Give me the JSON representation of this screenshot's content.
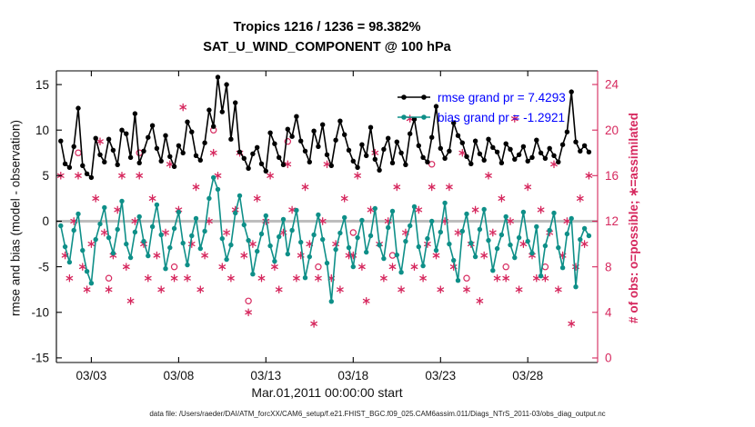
{
  "legend": {
    "text_color": "#0000ff",
    "items": [
      {
        "name": "rmse",
        "label": "rmse grand pr = 7.4293",
        "color": "#000000"
      },
      {
        "name": "bias",
        "label": "bias grand pr = -1.2921",
        "color": "#0e8f88"
      }
    ]
  },
  "footer": {
    "data_file": "data file: /Users/raeder/DAI/ATM_forcXX/CAM6_setup/f.e21.FHIST_BGC.f09_025.CAM6assim.011/Diags_NTrS_2011-03/obs_diag_output.nc"
  },
  "chart_data": {
    "type": "line",
    "title": "Tropics 1216 / 1236 = 98.382%",
    "subtitle": "SAT_U_WIND_COMPONENT @ 100 hPa",
    "xlabel": "Mar.01,2011 00:00:00 start",
    "ylabel_left": "rmse and bias (model - observation)",
    "ylabel_right": "# of obs: o=possible; ∗=assimilated",
    "right_axis_color": "#d6285e",
    "zero_line": {
      "color": "#bdbdbd",
      "width": 3
    },
    "xlim": [
      1,
      32
    ],
    "x_start_day": 1.25,
    "x_step_days": 0.25,
    "xticks": [
      3,
      8,
      13,
      18,
      23,
      28
    ],
    "xtick_labels": [
      "03/03",
      "03/08",
      "03/13",
      "03/18",
      "03/23",
      "03/28"
    ],
    "ylim_left": [
      -15,
      15
    ],
    "yticks_left": [
      -15,
      -10,
      -5,
      0,
      5,
      10,
      15
    ],
    "ylim_right": [
      0,
      24
    ],
    "yticks_right": [
      0,
      4,
      8,
      12,
      16,
      20,
      24
    ],
    "grand_means": {
      "rmse": 7.4293,
      "bias": -1.2921
    },
    "obs_summary": {
      "region": "Tropics",
      "assimilated": 1216,
      "possible": 1236,
      "percent": 98.382
    },
    "series": [
      {
        "name": "rmse",
        "axis": "left",
        "color": "#000000",
        "marker": "filled-circle",
        "values": [
          8.8,
          6.3,
          5.9,
          8.2,
          12.4,
          6.1,
          5.2,
          4.8,
          9.1,
          7.3,
          6.5,
          9.0,
          7.8,
          6.2,
          10.0,
          9.6,
          7.0,
          11.8,
          6.4,
          7.7,
          9.2,
          10.5,
          8.0,
          6.6,
          9.4,
          7.1,
          6.0,
          8.3,
          7.5,
          10.9,
          9.8,
          7.2,
          6.7,
          8.6,
          12.2,
          10.4,
          15.8,
          12.0,
          15.0,
          9.0,
          13.0,
          7.6,
          6.9,
          5.8,
          7.4,
          8.1,
          6.3,
          5.5,
          9.7,
          8.5,
          7.0,
          6.2,
          10.1,
          9.3,
          11.5,
          8.8,
          7.7,
          6.5,
          9.9,
          8.2,
          10.6,
          7.3,
          6.1,
          8.9,
          11.0,
          9.5,
          7.8,
          6.6,
          5.9,
          8.4,
          7.2,
          10.3,
          6.8,
          5.6,
          7.9,
          9.1,
          6.4,
          8.7,
          7.5,
          6.2,
          9.6,
          11.2,
          8.3,
          7.0,
          6.5,
          9.2,
          12.6,
          8.0,
          6.9,
          7.7,
          10.8,
          9.4,
          8.6,
          7.1,
          6.3,
          8.8,
          7.4,
          6.7,
          9.0,
          8.1,
          7.6,
          6.4,
          8.5,
          7.9,
          6.8,
          7.3,
          8.2,
          6.6,
          7.0,
          8.9,
          7.5,
          6.9,
          8.0,
          7.2,
          6.5,
          8.4,
          9.8,
          14.2,
          8.7,
          7.7,
          8.3,
          7.6
        ]
      },
      {
        "name": "bias",
        "axis": "left",
        "color": "#0e8f88",
        "marker": "filled-circle",
        "values": [
          -0.5,
          -2.8,
          -4.5,
          -1.0,
          0.8,
          -3.2,
          -5.5,
          -6.8,
          -2.0,
          -0.3,
          1.5,
          -1.8,
          -3.5,
          -0.9,
          2.2,
          -2.5,
          -4.0,
          -1.2,
          0.5,
          -2.2,
          -3.8,
          -0.6,
          1.8,
          -1.5,
          -5.2,
          -2.9,
          -0.8,
          1.0,
          -2.4,
          -4.8,
          -1.6,
          0.3,
          -3.0,
          -1.1,
          2.5,
          4.8,
          3.5,
          -1.9,
          -4.2,
          -2.6,
          0.9,
          2.8,
          -0.4,
          -2.1,
          -5.8,
          -3.3,
          -1.4,
          0.6,
          -2.7,
          -4.4,
          -1.7,
          0.2,
          -3.6,
          -1.0,
          1.2,
          -2.3,
          -6.2,
          -3.9,
          -1.5,
          0.7,
          -2.0,
          -4.6,
          -8.8,
          -3.1,
          -1.3,
          0.4,
          -2.9,
          -5.0,
          -1.8,
          0.1,
          -3.4,
          -1.6,
          1.4,
          -2.6,
          -4.1,
          -0.7,
          1.1,
          -3.7,
          -5.6,
          -2.2,
          -0.5,
          1.6,
          -2.8,
          -4.9,
          -1.9,
          0.0,
          -3.2,
          -1.2,
          2.0,
          -2.5,
          -4.3,
          -6.5,
          -1.1,
          0.8,
          -2.4,
          -3.9,
          -0.9,
          1.3,
          -2.1,
          -5.4,
          -3.0,
          -1.5,
          0.5,
          -2.6,
          -4.0,
          -1.8,
          1.0,
          -2.2,
          -3.5,
          -0.6,
          -6.0,
          -2.7,
          -1.0,
          0.9,
          -2.9,
          -5.1,
          -1.4,
          0.3,
          -7.2,
          -2.0,
          -0.8,
          -1.6
        ]
      },
      {
        "name": "possible",
        "axis": "right",
        "color": "#d6285e",
        "marker": "open-circle",
        "values": [
          16,
          9,
          7,
          12,
          18,
          8,
          6,
          10,
          14,
          19,
          11,
          7,
          9,
          13,
          16,
          8,
          5,
          12,
          18,
          10,
          7,
          14,
          9,
          6,
          11,
          17,
          8,
          13,
          22,
          7,
          10,
          15,
          6,
          9,
          12,
          20,
          16,
          8,
          11,
          7,
          13,
          18,
          9,
          5,
          10,
          14,
          7,
          12,
          16,
          8,
          6,
          11,
          19,
          13,
          7,
          9,
          15,
          10,
          3,
          8,
          12,
          17,
          7,
          10,
          6,
          14,
          9,
          11,
          16,
          8,
          5,
          13,
          18,
          10,
          7,
          12,
          9,
          15,
          6,
          11,
          21,
          8,
          13,
          7,
          10,
          17,
          9,
          6,
          12,
          15,
          8,
          11,
          18,
          7,
          10,
          13,
          5,
          9,
          16,
          11,
          7,
          14,
          8,
          12,
          21,
          6,
          10,
          15,
          9,
          7,
          13,
          8,
          11,
          17,
          6,
          9,
          12,
          3,
          8,
          14,
          10,
          16
        ]
      },
      {
        "name": "assimilated",
        "axis": "right",
        "color": "#d6285e",
        "marker": "asterisk",
        "values": [
          16,
          9,
          7,
          12,
          16,
          8,
          6,
          10,
          14,
          19,
          11,
          6,
          9,
          13,
          16,
          8,
          5,
          12,
          16,
          10,
          7,
          14,
          9,
          6,
          11,
          17,
          7,
          13,
          22,
          7,
          10,
          15,
          6,
          9,
          12,
          18,
          16,
          8,
          11,
          7,
          13,
          18,
          9,
          4,
          10,
          14,
          7,
          12,
          16,
          8,
          6,
          11,
          17,
          13,
          7,
          9,
          15,
          10,
          3,
          7,
          12,
          17,
          7,
          10,
          6,
          14,
          9,
          9,
          16,
          8,
          5,
          13,
          18,
          10,
          7,
          12,
          8,
          15,
          6,
          11,
          21,
          8,
          13,
          7,
          10,
          15,
          9,
          6,
          12,
          15,
          8,
          11,
          18,
          6,
          10,
          13,
          5,
          9,
          16,
          11,
          7,
          14,
          7,
          12,
          21,
          6,
          10,
          15,
          9,
          7,
          13,
          7,
          11,
          17,
          6,
          9,
          12,
          3,
          8,
          14,
          10,
          16
        ]
      }
    ]
  }
}
